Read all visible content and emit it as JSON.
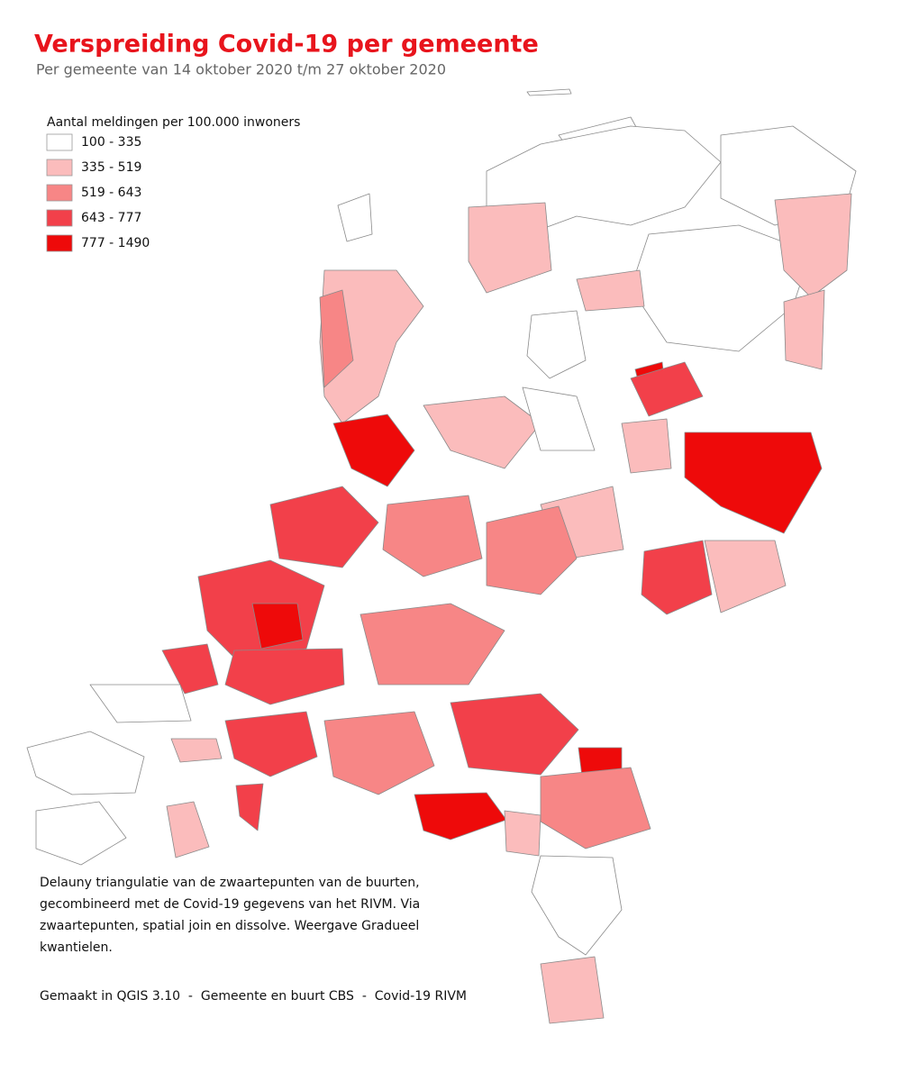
{
  "title": "Verspreiding Covid-19 per gemeente",
  "subtitle": "Per gemeente van 14 oktober 2020 t/m 27 oktober 2020",
  "legend": {
    "title": "Aantal meldingen per 100.000 inwoners",
    "items": [
      {
        "label": "100 - 335",
        "color": "#ffffff"
      },
      {
        "label": "335 - 519",
        "color": "#fbbcbc"
      },
      {
        "label": "519 - 643",
        "color": "#f78686"
      },
      {
        "label": "643 - 777",
        "color": "#f2404a"
      },
      {
        "label": "777 - 1490",
        "color": "#ee0a0a"
      }
    ]
  },
  "description": [
    "Delauny triangulatie van de zwaartepunten van de buurten,",
    "gecombineerd met de Covid-19 gegevens van het RIVM. Via",
    "zwaartepunten, spatial join en dissolve. Weergave Gradueel",
    "kwantielen."
  ],
  "credits": "Gemaakt in QGIS 3.10  -  Gemeente en buurt CBS  -  Covid-19 RIVM"
}
